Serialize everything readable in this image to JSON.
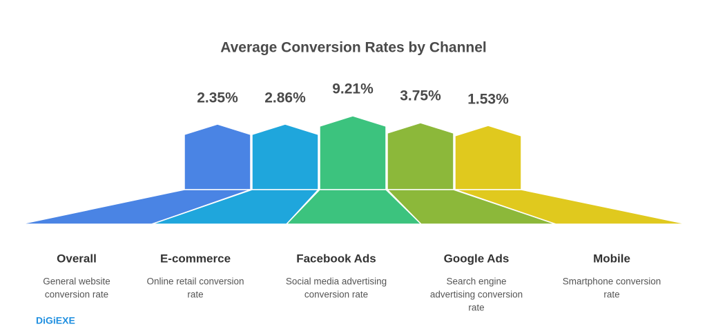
{
  "header": {
    "title": "Average Conversion Rates by Channel"
  },
  "channels": [
    {
      "label": "Overall",
      "value": "2.35%",
      "description": [
        "General website",
        "conversion rate"
      ],
      "color": "#4a84e4"
    },
    {
      "label": "E-commerce",
      "value": "2.86%",
      "description": [
        "Online retail conversion",
        "rate"
      ],
      "color": "#1fa6dc"
    },
    {
      "label": "Facebook Ads",
      "value": "9.21%",
      "description": [
        "Social media advertising",
        "conversion rate"
      ],
      "color": "#3cc37e"
    },
    {
      "label": "Google Ads",
      "value": "3.75%",
      "description": [
        "Search engine",
        "advertising conversion",
        "rate"
      ],
      "color": "#8cb83a"
    },
    {
      "label": "Mobile",
      "value": "1.53%",
      "description": [
        "Smartphone conversion",
        "rate"
      ],
      "color": "#e0c91e"
    }
  ],
  "brand": "DiGiEXE"
}
